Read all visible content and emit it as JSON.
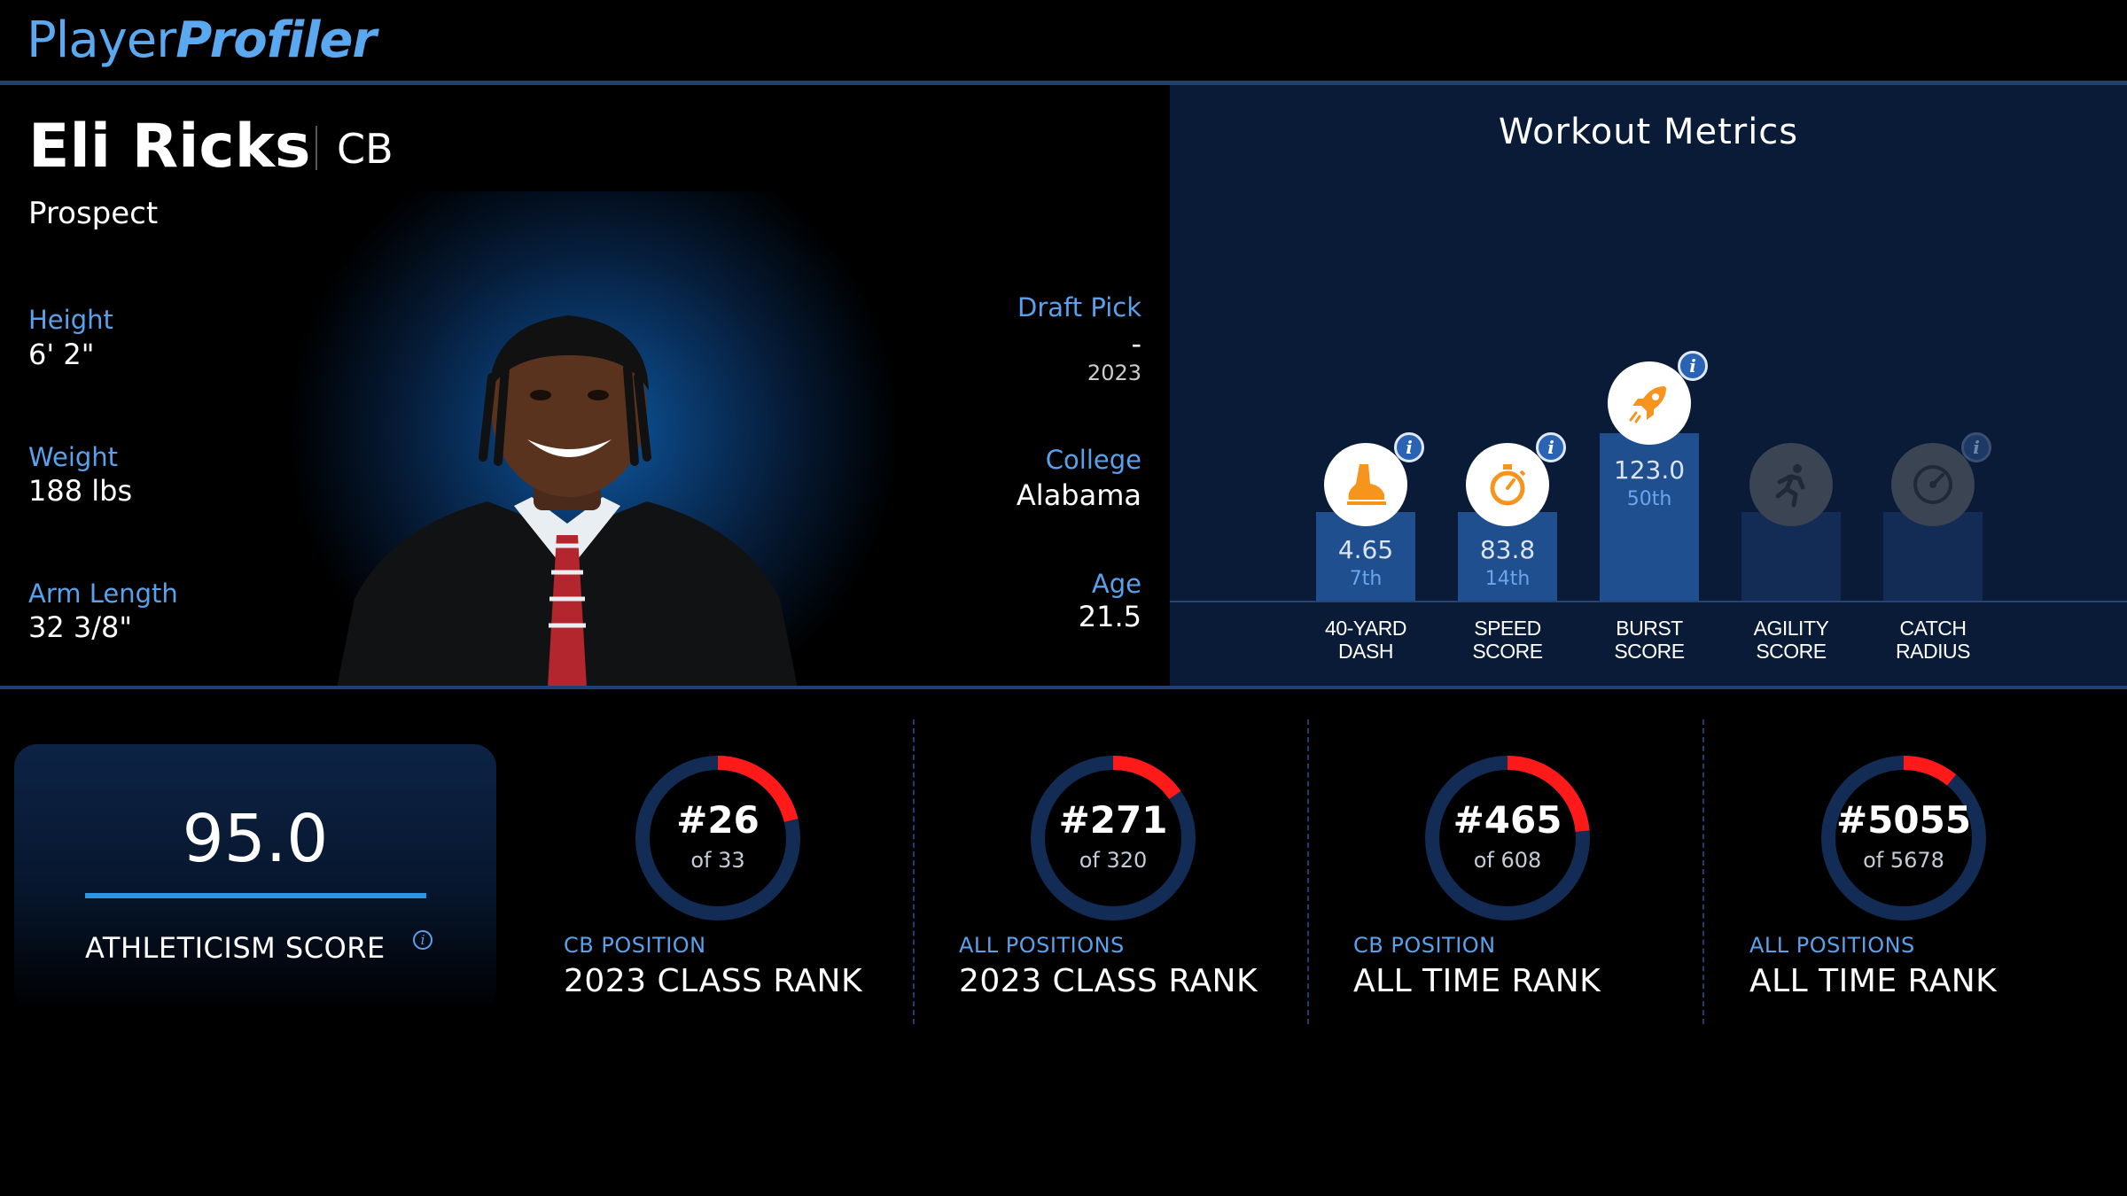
{
  "brand": {
    "part1": "Player",
    "part2": "Profiler"
  },
  "player": {
    "name": "Eli Ricks",
    "position": "CB",
    "status": "Prospect",
    "stats_left": [
      {
        "label": "Height",
        "value": "6' 2\""
      },
      {
        "label": "Weight",
        "value": "188 lbs"
      },
      {
        "label": "Arm Length",
        "value": "32 3/8\""
      }
    ],
    "draft": {
      "label": "Draft Pick",
      "value": "-",
      "year": "2023"
    },
    "college": {
      "label": "College",
      "value": "Alabama"
    },
    "age": {
      "label": "Age",
      "value": "21.5"
    }
  },
  "workout": {
    "title": "Workout Metrics",
    "metrics": [
      {
        "icon": "shoe-icon",
        "value": "4.65",
        "percentile_label": "7th",
        "label_line1": "40-YARD",
        "label_line2": "DASH",
        "active": true
      },
      {
        "icon": "stopwatch-icon",
        "value": "83.8",
        "percentile_label": "14th",
        "label_line1": "SPEED",
        "label_line2": "SCORE",
        "active": true
      },
      {
        "icon": "rocket-icon",
        "value": "123.0",
        "percentile_label": "50th",
        "label_line1": "BURST",
        "label_line2": "SCORE",
        "active": true
      },
      {
        "icon": "runner-icon",
        "value": "",
        "percentile_label": "",
        "label_line1": "AGILITY",
        "label_line2": "SCORE",
        "active": false
      },
      {
        "icon": "target-icon",
        "value": "",
        "percentile_label": "",
        "label_line1": "CATCH",
        "label_line2": "RADIUS",
        "active": false
      }
    ]
  },
  "athleticism": {
    "score": "95.0",
    "label": "ATHLETICISM SCORE"
  },
  "ranks": [
    {
      "rank": "#26",
      "of": "of 33",
      "rank_value": 26,
      "total": 33,
      "sub": "CB POSITION",
      "title": "2023 CLASS RANK"
    },
    {
      "rank": "#271",
      "of": "of 320",
      "rank_value": 271,
      "total": 320,
      "sub": "ALL POSITIONS",
      "title": "2023 CLASS RANK"
    },
    {
      "rank": "#465",
      "of": "of 608",
      "rank_value": 465,
      "total": 608,
      "sub": "CB POSITION",
      "title": "ALL TIME RANK"
    },
    {
      "rank": "#5055",
      "of": "of 5678",
      "rank_value": 5055,
      "total": 5678,
      "sub": "ALL POSITIONS",
      "title": "ALL TIME RANK"
    }
  ],
  "colors": {
    "accent": "#5aa1ec",
    "ring_bg": "#132c55",
    "ring_fill": "#ff1a1a",
    "icon_orange": "#f7941d"
  }
}
